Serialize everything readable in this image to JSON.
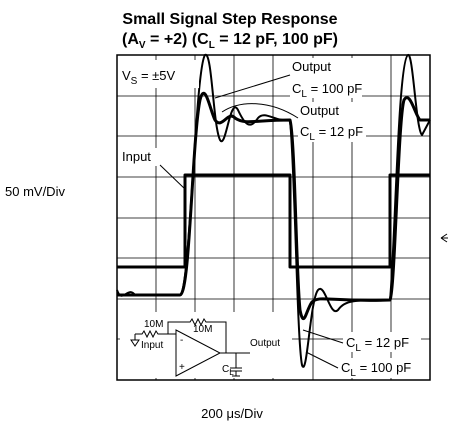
{
  "title": {
    "line1": "Small Signal Step Response",
    "line2": {
      "a": "(A",
      "a_sub": "V",
      "b": " = +2) (C",
      "b_sub": "L",
      "c": " = 12 pF, 100 pF)"
    }
  },
  "y_label": "50 mV/Div",
  "x_label": "200 μs/Div",
  "annotations": {
    "vs": {
      "a": "V",
      "sub": "S",
      "b": " = ±5V"
    },
    "out100": {
      "line1": "Output",
      "a": "C",
      "sub": "L",
      "b": " = 100 pF"
    },
    "out12": {
      "line1": "Output",
      "a": "C",
      "sub": "L",
      "b": " = 12 pF"
    },
    "input": "Input",
    "cl12": {
      "a": "C",
      "sub": "L",
      "b": " = 12 pF"
    },
    "cl100": {
      "a": "C",
      "sub": "L",
      "b": " = 100 pF"
    }
  },
  "circuit": {
    "r1": "10M",
    "r2": "10M",
    "input": "Input",
    "output": "Output",
    "minus": "-",
    "plus": "+",
    "cl": "C",
    "cl_sub": "L"
  }
}
